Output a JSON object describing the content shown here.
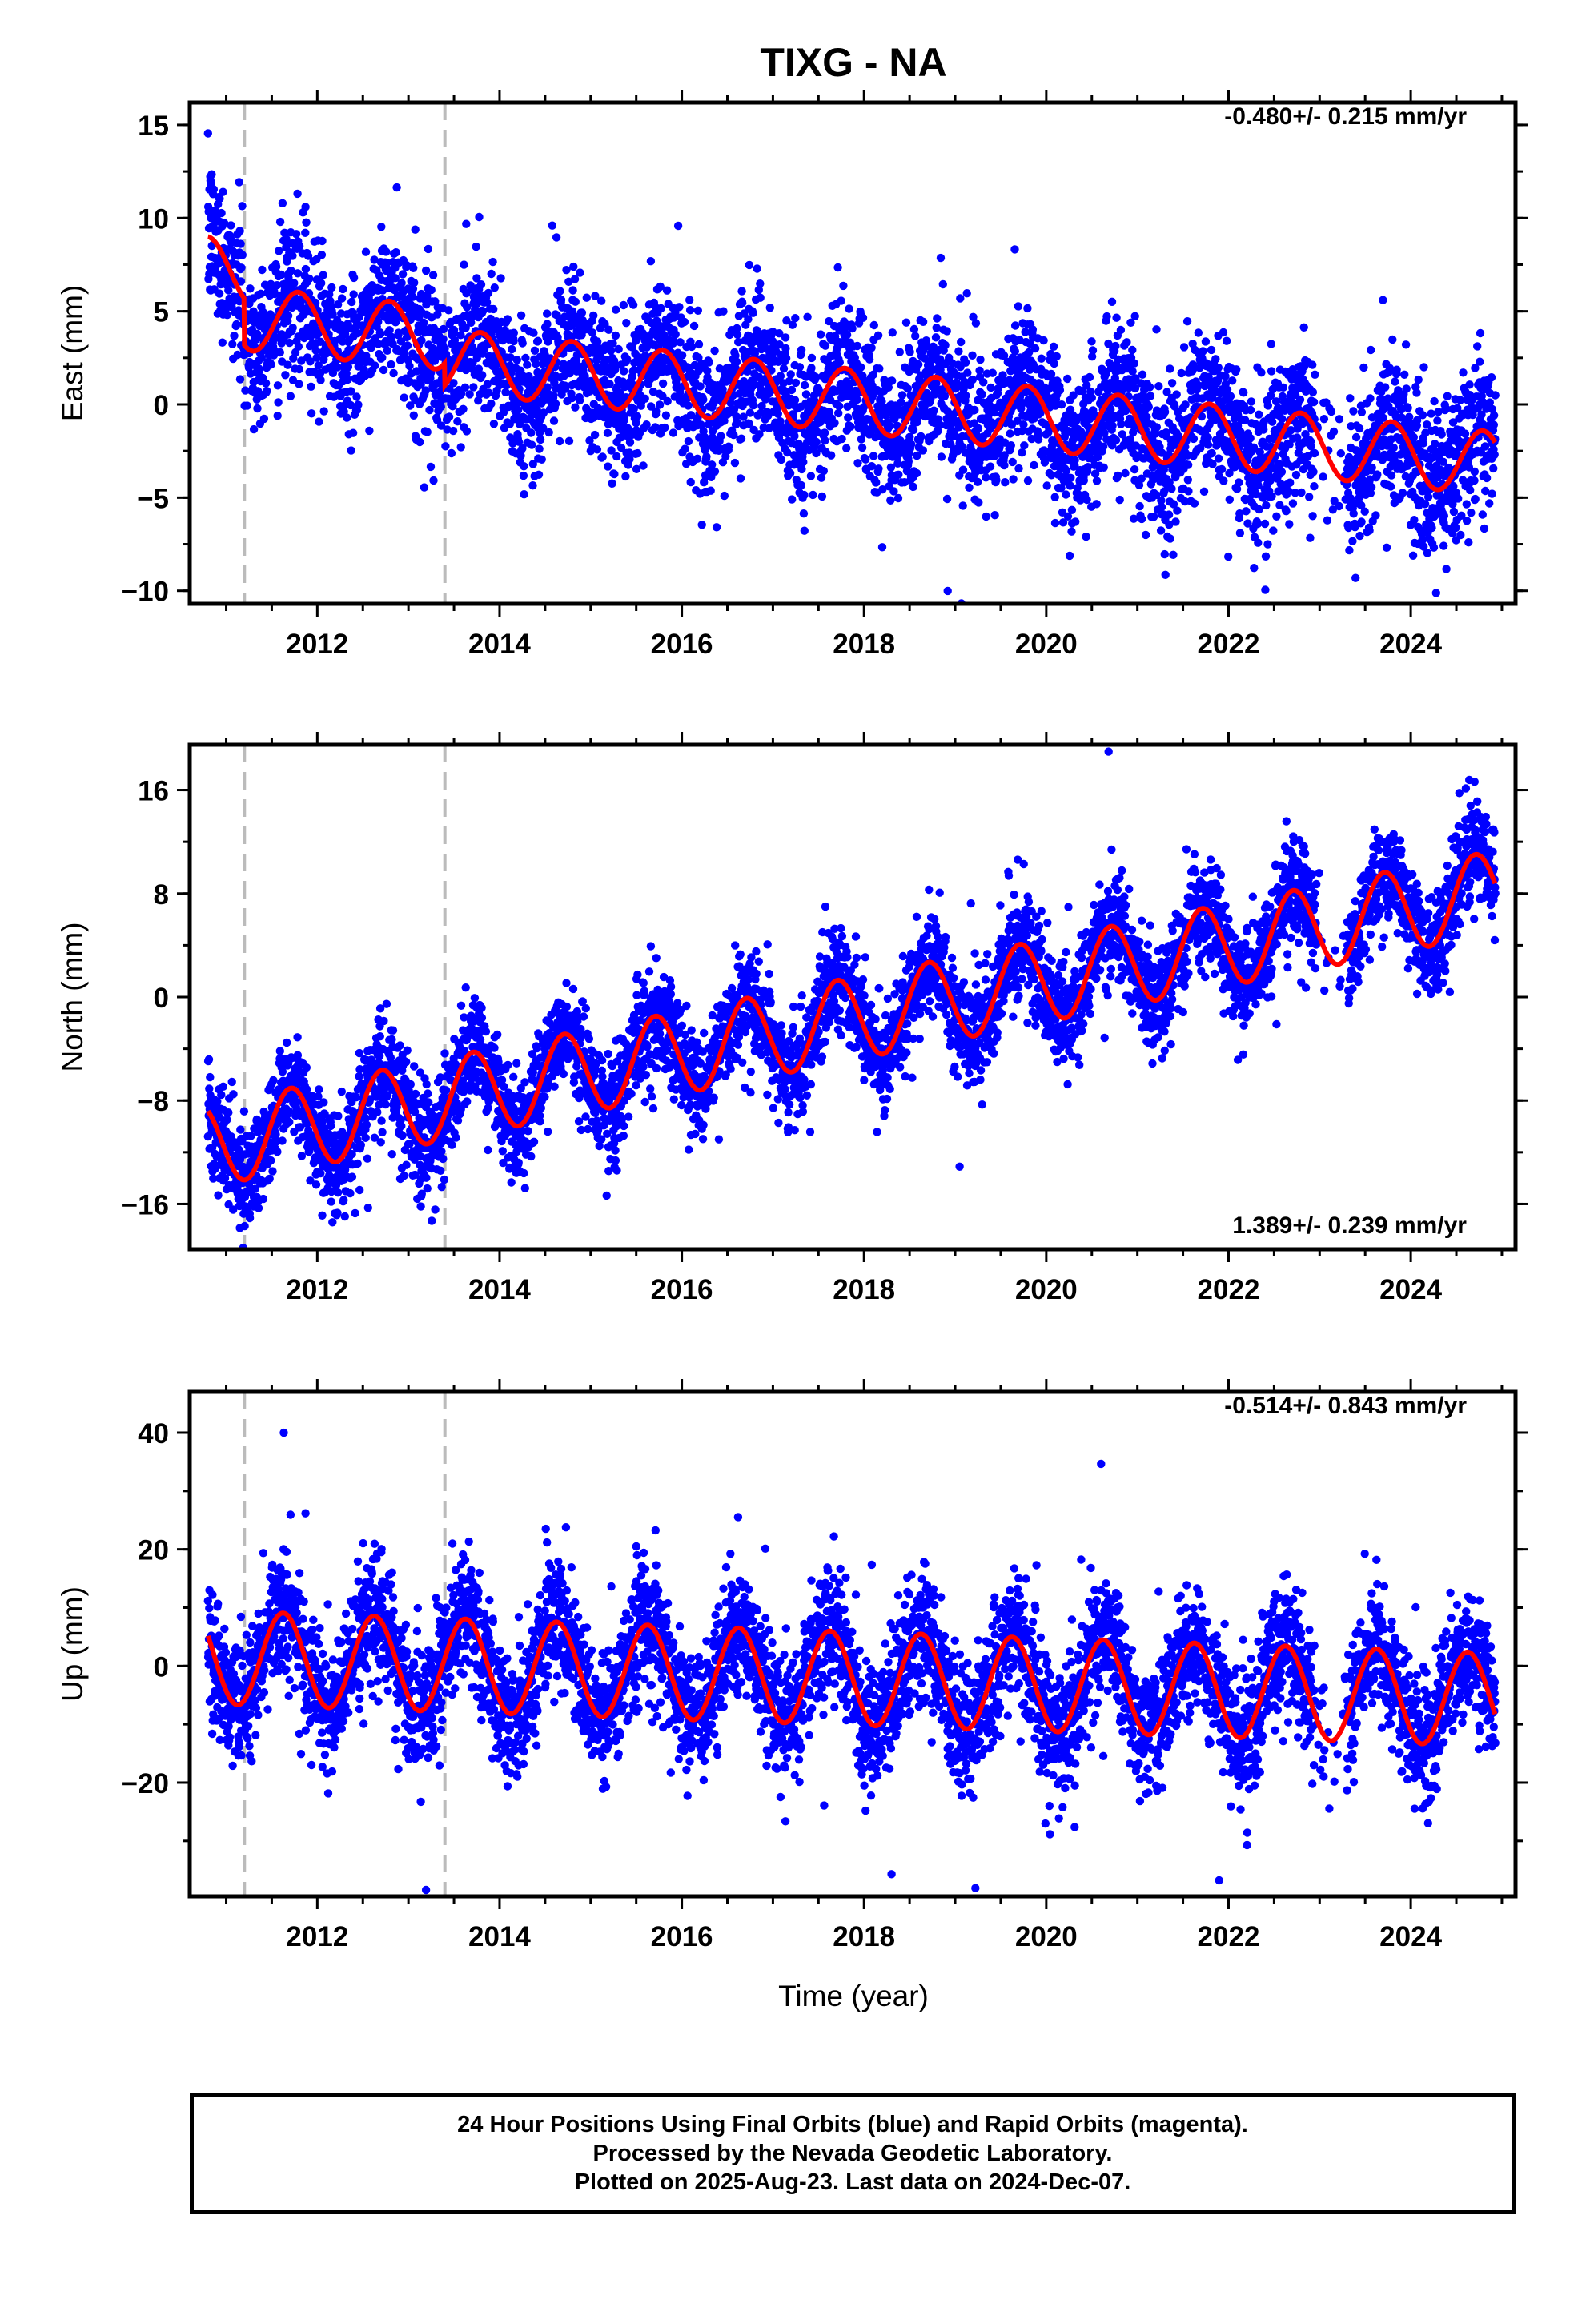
{
  "figure": {
    "title": "TIXG - NA",
    "xlabel": "Time (year)",
    "caption": [
      "24 Hour Positions Using Final Orbits (blue) and Rapid Orbits (magenta).",
      "Processed by the Nevada Geodetic Laboratory.",
      "Plotted on 2025-Aug-23. Last data on 2024-Dec-07."
    ],
    "colors": {
      "data": "#0000ff",
      "model": "#ff0000",
      "event_line": "#bbbbbb",
      "frame": "#000000"
    }
  },
  "chart_data": [
    {
      "type": "scatter",
      "ylabel": "East (mm)",
      "rate": "-0.480+/- 0.215 mm/yr",
      "xlim": [
        2010.6,
        2025.15
      ],
      "ylim": [
        -10.7,
        16.2
      ],
      "xticks": [
        2012,
        2014,
        2016,
        2018,
        2020,
        2022,
        2024
      ],
      "yticks": [
        -10,
        -5,
        0,
        5,
        10,
        15
      ],
      "event_lines": [
        2011.2,
        2013.4
      ],
      "data_range": [
        2010.8,
        2024.93
      ],
      "model": {
        "offset_at_start": 7.3,
        "rate": -0.48,
        "annual_amplitude": 1.7,
        "annual_peak_month": 10,
        "step_2011_2": -2.5,
        "step_2013_4": -1.2
      },
      "scatter_sigma": 2.0
    },
    {
      "type": "scatter",
      "ylabel": "North (mm)",
      "rate": "1.389+/- 0.239 mm/yr",
      "xlim": [
        2010.6,
        2025.15
      ],
      "ylim": [
        -19.5,
        19.5
      ],
      "xticks": [
        2012,
        2014,
        2016,
        2018,
        2020,
        2022,
        2024
      ],
      "yticks": [
        -16,
        -8,
        0,
        8,
        16
      ],
      "event_lines": [
        2011.2,
        2013.4
      ],
      "data_range": [
        2010.8,
        2024.93
      ],
      "model": {
        "offset_at_start": -11.5,
        "rate": 1.389,
        "annual_amplitude": 3.2,
        "annual_peak_month": 9,
        "step_2011_2": 0,
        "step_2013_4": 0
      },
      "scatter_sigma": 2.0
    },
    {
      "type": "scatter",
      "ylabel": "Up (mm)",
      "rate": "-0.514+/- 0.843 mm/yr",
      "xlim": [
        2010.6,
        2025.15
      ],
      "ylim": [
        -39.5,
        47
      ],
      "xticks": [
        2012,
        2014,
        2016,
        2018,
        2020,
        2022,
        2024
      ],
      "yticks": [
        -20,
        0,
        20,
        40
      ],
      "event_lines": [
        2011.2,
        2013.4
      ],
      "data_range": [
        2010.8,
        2024.93
      ],
      "model": {
        "offset_at_start": 1.5,
        "rate": -0.514,
        "annual_amplitude": 8.0,
        "annual_peak_month": 8,
        "step_2011_2": 0,
        "step_2013_4": 0
      },
      "scatter_sigma": 5.5
    }
  ]
}
